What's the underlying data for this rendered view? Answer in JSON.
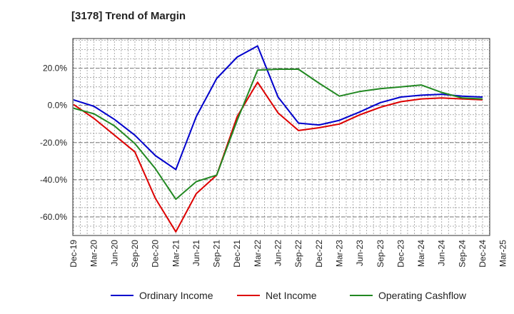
{
  "chart_data": {
    "type": "line",
    "title": "[3178]  Trend of Margin",
    "xlabel": "",
    "ylabel": "",
    "x": [
      "Dec-19",
      "Mar-20",
      "Jun-20",
      "Sep-20",
      "Dec-20",
      "Mar-21",
      "Jun-21",
      "Sep-21",
      "Dec-21",
      "Mar-22",
      "Jun-22",
      "Sep-22",
      "Dec-22",
      "Mar-23",
      "Jun-23",
      "Sep-23",
      "Dec-23",
      "Mar-24",
      "Jun-24",
      "Sep-24",
      "Dec-24",
      "Mar-25"
    ],
    "ylim": [
      -70,
      36
    ],
    "yticks": [
      20,
      0,
      -20,
      -40,
      -60
    ],
    "ytick_labels": [
      "20.0%",
      "0.0%",
      "-20.0%",
      "-40.0%",
      "-60.0%"
    ],
    "grid": true,
    "legend_position": "bottom",
    "series": [
      {
        "name": "Ordinary Income",
        "color": "#0000cc",
        "values": [
          3.0,
          -0.5,
          -7.5,
          -16.0,
          -27.0,
          -34.5,
          -6.0,
          14.5,
          26.0,
          32.0,
          4.5,
          -9.5,
          -10.5,
          -8.0,
          -3.5,
          1.5,
          4.5,
          5.5,
          6.0,
          5.0,
          4.5,
          null
        ]
      },
      {
        "name": "Net Income",
        "color": "#dd0000",
        "values": [
          0.5,
          -7.0,
          -16.0,
          -25.0,
          -50.0,
          -68.0,
          -47.5,
          -37.5,
          -6.0,
          12.5,
          -4.0,
          -13.5,
          -12.0,
          -10.0,
          -5.0,
          -1.0,
          2.0,
          3.5,
          4.0,
          3.5,
          3.0,
          null
        ]
      },
      {
        "name": "Operating Cashflow",
        "color": "#228822",
        "values": [
          -1.5,
          -4.5,
          -11.0,
          -20.5,
          -34.0,
          -50.5,
          -41.0,
          -37.5,
          -8.0,
          19.0,
          19.5,
          19.5,
          12.0,
          5.0,
          7.5,
          9.0,
          10.0,
          11.0,
          7.0,
          4.0,
          3.5,
          null
        ]
      }
    ]
  }
}
